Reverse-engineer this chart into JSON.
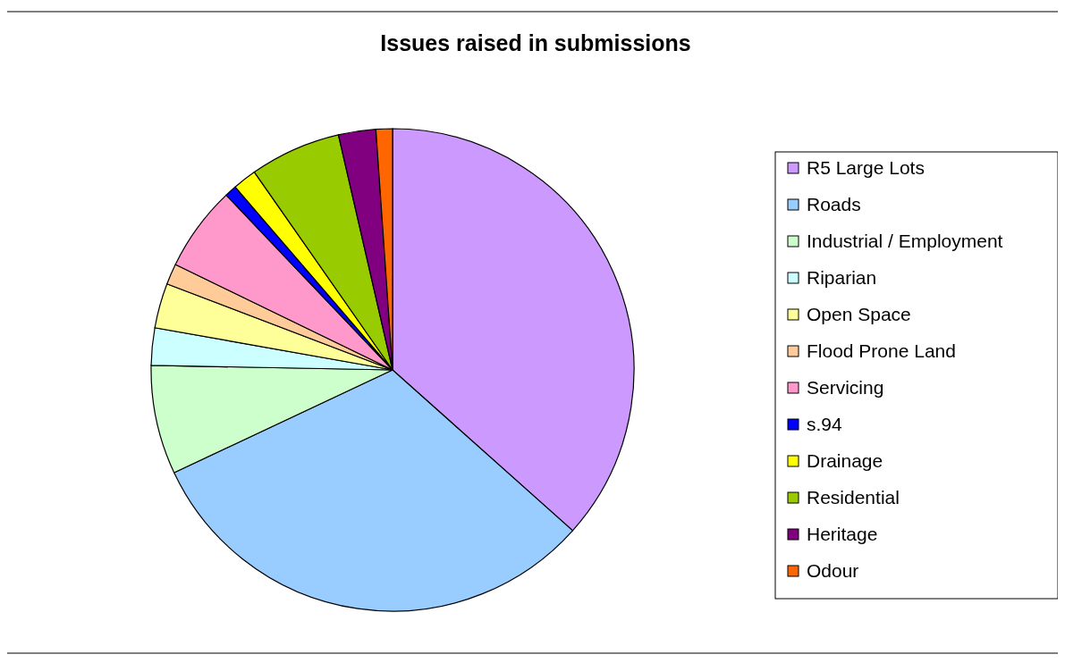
{
  "chart_data": {
    "type": "pie",
    "title": "Issues raised in submissions",
    "legend": "right",
    "categories": [
      "R5 Large Lots",
      "Roads",
      "Industrial / Employment",
      "Riparian",
      "Open Space",
      "Flood Prone Land",
      "Servicing",
      "s.94",
      "Drainage",
      "Residential",
      "Heritage",
      "Odour"
    ],
    "values": [
      36.6,
      31.4,
      7.3,
      2.5,
      3.0,
      1.4,
      5.7,
      0.8,
      1.6,
      6.1,
      2.5,
      1.1
    ],
    "colors": [
      "#cc99ff",
      "#99ccff",
      "#ccffcc",
      "#ccffff",
      "#ffff99",
      "#ffcc99",
      "#ff99cc",
      "#0000ff",
      "#ffff00",
      "#99cc00",
      "#800080",
      "#ff6600"
    ]
  }
}
